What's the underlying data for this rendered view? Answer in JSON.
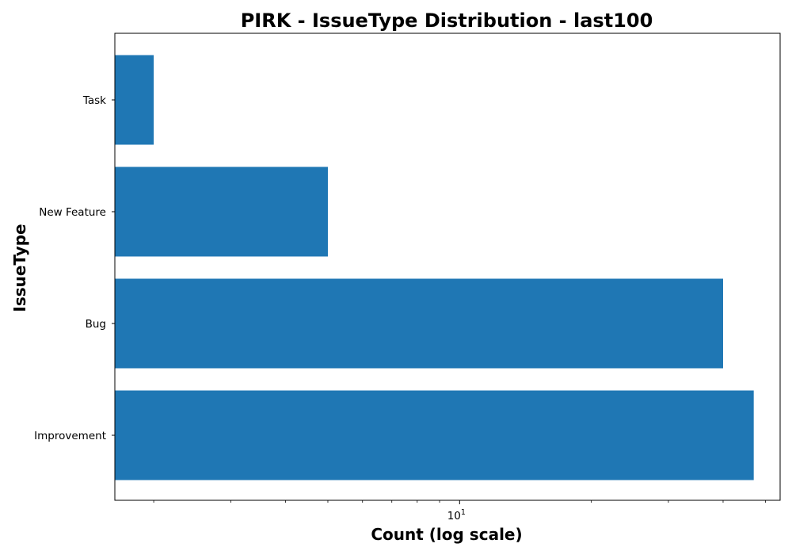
{
  "chart_data": {
    "type": "bar",
    "orientation": "horizontal",
    "title": "PIRK - IssueType Distribution - last100",
    "xlabel": "Count (log scale)",
    "ylabel": "IssueType",
    "x_scale": "log",
    "xlim": [
      1.63,
      54
    ],
    "x_major_tick_label": {
      "base": "10",
      "exponent": "1"
    },
    "categories": [
      "Task",
      "New Feature",
      "Bug",
      "Improvement"
    ],
    "values": [
      2,
      5,
      40,
      47
    ],
    "bar_color": "#1f77b4",
    "grid": false,
    "legend": "none"
  }
}
